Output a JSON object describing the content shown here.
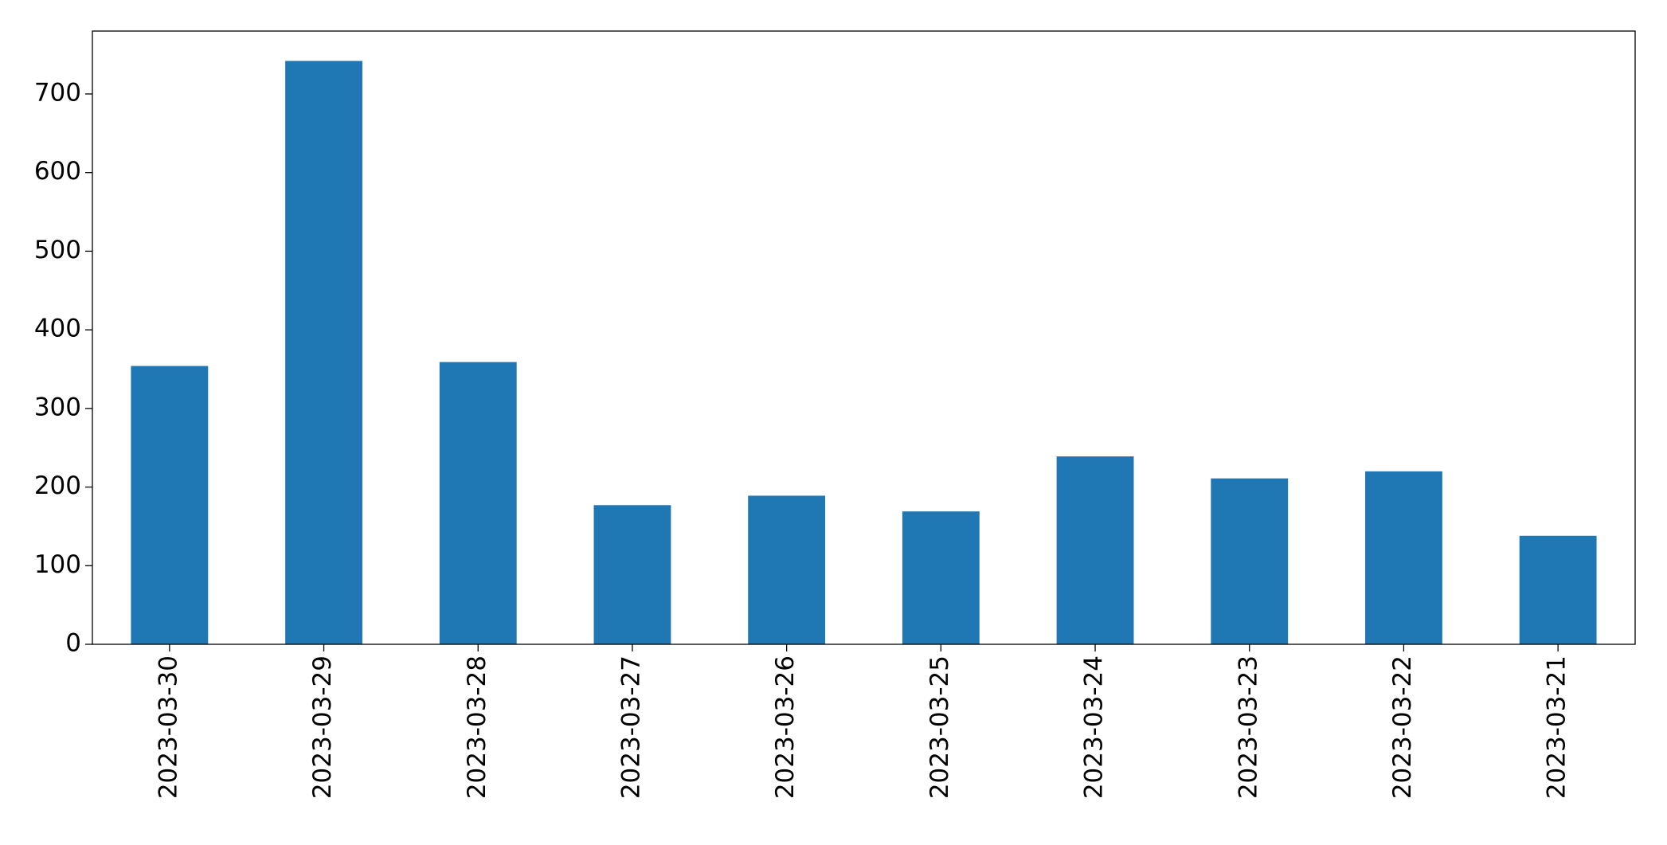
{
  "chart_data": {
    "type": "bar",
    "categories": [
      "2023-03-30",
      "2023-03-29",
      "2023-03-28",
      "2023-03-27",
      "2023-03-26",
      "2023-03-25",
      "2023-03-24",
      "2023-03-23",
      "2023-03-22",
      "2023-03-21"
    ],
    "values": [
      354,
      742,
      359,
      177,
      189,
      169,
      239,
      211,
      220,
      138
    ],
    "color": "#1f77b4",
    "ylim": [
      0,
      780
    ],
    "yticks": [
      0,
      100,
      200,
      300,
      400,
      500,
      600,
      700
    ],
    "grid": false
  }
}
